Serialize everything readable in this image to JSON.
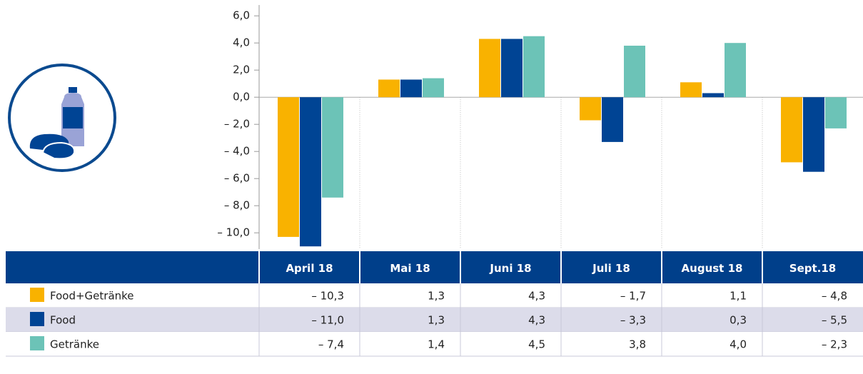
{
  "chart_data": {
    "type": "bar",
    "categories": [
      "April 18",
      "Mai 18",
      "Juni 18",
      "Juli 18",
      "August 18",
      "Sept.18"
    ],
    "series": [
      {
        "name": "Food+Getränke",
        "color": "#f9b200",
        "values": [
          -10.3,
          1.3,
          4.3,
          -1.7,
          1.1,
          -4.8
        ],
        "value_labels": [
          "– 10,3",
          "1,3",
          "4,3",
          "– 1,7",
          "1,1",
          "– 4,8"
        ]
      },
      {
        "name": "Food",
        "color": "#004494",
        "values": [
          -11.0,
          1.3,
          4.3,
          -3.3,
          0.3,
          -5.5
        ],
        "value_labels": [
          "– 11,0",
          "1,3",
          "4,3",
          "– 3,3",
          "0,3",
          "– 5,5"
        ]
      },
      {
        "name": "Getränke",
        "color": "#6cc3b7",
        "values": [
          -7.4,
          1.4,
          4.5,
          3.8,
          4.0,
          -2.3
        ],
        "value_labels": [
          "– 7,4",
          "1,4",
          "4,5",
          "3,8",
          "4,0",
          "– 2,3"
        ]
      }
    ],
    "ylim": [
      -11.2,
      6.8
    ],
    "yticks": [
      {
        "value": 6,
        "label": "6,0"
      },
      {
        "value": 4,
        "label": "4,0"
      },
      {
        "value": 2,
        "label": "2,0"
      },
      {
        "value": 0,
        "label": "0,0"
      },
      {
        "value": -2,
        "label": "– 2,0"
      },
      {
        "value": -4,
        "label": "– 4,0"
      },
      {
        "value": -6,
        "label": "– 6,0"
      },
      {
        "value": -8,
        "label": "– 8,0"
      },
      {
        "value": -10,
        "label": "– 10,0"
      }
    ],
    "grid": true
  }
}
